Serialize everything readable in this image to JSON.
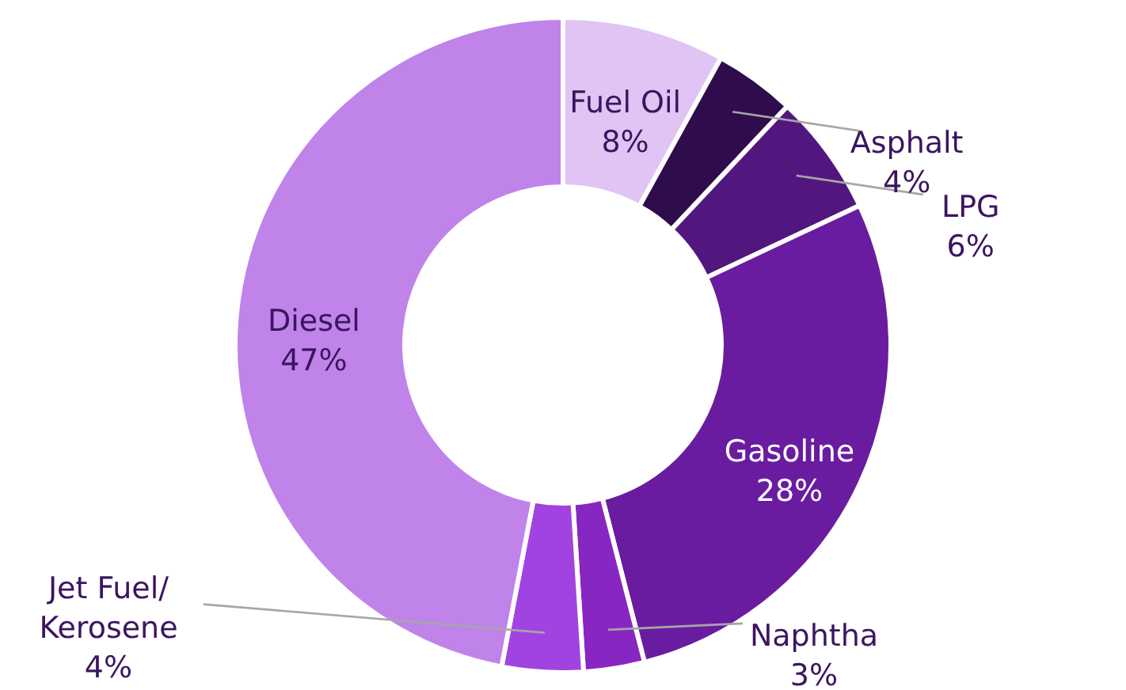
{
  "chart_data": {
    "type": "donut",
    "categories": [
      "Fuel Oil",
      "Asphalt",
      "LPG",
      "Gasoline",
      "Naphtha",
      "Jet Fuel/\nKerosene",
      "Diesel"
    ],
    "values": [
      8,
      4,
      6,
      28,
      3,
      4,
      47
    ],
    "value_labels": [
      "8%",
      "4%",
      "6%",
      "28%",
      "3%",
      "4%",
      "47%"
    ],
    "colors": [
      "#e0c4f4",
      "#2f0d4d",
      "#52177e",
      "#6a1ca0",
      "#8826c2",
      "#a043e0",
      "#c083ea"
    ]
  }
}
